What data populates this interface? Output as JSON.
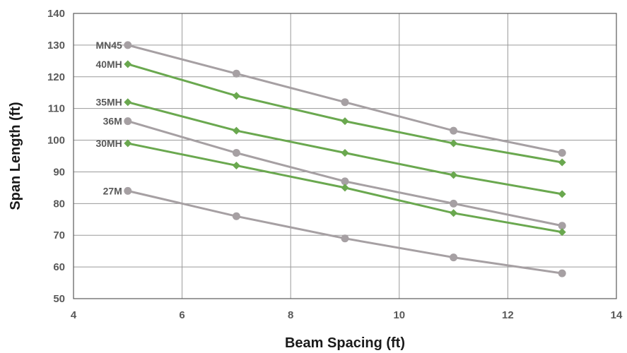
{
  "chart_data": {
    "type": "line",
    "title": "",
    "xlabel": "Beam Spacing (ft)",
    "ylabel": "Span Length (ft)",
    "xlim": [
      4,
      14
    ],
    "ylim": [
      50,
      140
    ],
    "xticks": [
      4,
      6,
      8,
      10,
      12,
      14
    ],
    "yticks": [
      50,
      60,
      70,
      80,
      90,
      100,
      110,
      120,
      130,
      140
    ],
    "grid": true,
    "legend": "none",
    "x": [
      5,
      7,
      9,
      11,
      13
    ],
    "series": [
      {
        "name": "MN45",
        "marker": "circle",
        "color": "#a6a0a3",
        "values": [
          130,
          121,
          112,
          103,
          96
        ]
      },
      {
        "name": "40MH",
        "marker": "diamond",
        "color": "#6aa84f",
        "values": [
          124,
          114,
          106,
          99,
          93
        ]
      },
      {
        "name": "35MH",
        "marker": "diamond",
        "color": "#6aa84f",
        "values": [
          112,
          103,
          96,
          89,
          83
        ]
      },
      {
        "name": "36M",
        "marker": "circle",
        "color": "#a6a0a3",
        "values": [
          106,
          96,
          87,
          80,
          73
        ]
      },
      {
        "name": "30MH",
        "marker": "diamond",
        "color": "#6aa84f",
        "values": [
          99,
          92,
          85,
          77,
          71
        ]
      },
      {
        "name": "27M",
        "marker": "circle",
        "color": "#a6a0a3",
        "values": [
          84,
          76,
          69,
          63,
          58
        ]
      }
    ]
  }
}
